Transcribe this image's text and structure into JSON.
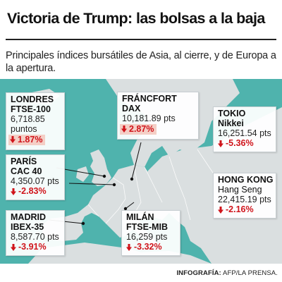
{
  "title": "Victoria de Trump: las bolsas a la baja",
  "subtitle": "Principales índices bursátiles de Asia, al cierre, y de Europa a la apertura.",
  "colors": {
    "sea": "#4fb3ad",
    "land": "#dadfe0",
    "negative": "#d0141b",
    "highlight": "#f4cfc6"
  },
  "markets": {
    "londres": {
      "city": "LONDRES",
      "index": "FTSE-100",
      "value_line1": "6,718.85",
      "value_line2": "puntos",
      "change": "1.87%",
      "direction": "down"
    },
    "frankfurt": {
      "city": "FRÁNCFORT",
      "index": "DAX",
      "value": "10,181.89 pts",
      "change": "2.87%",
      "direction": "down"
    },
    "tokio": {
      "city": "TOKIO",
      "index": "Nikkei",
      "value": "16,251.54 pts",
      "change": "-5.36%",
      "direction": "down"
    },
    "paris": {
      "city": "PARÍS",
      "index": "CAC 40",
      "value": "4,350.07 pts",
      "change": "-2.83%",
      "direction": "down"
    },
    "hongkong": {
      "city": "HONG KONG",
      "index": "Hang Seng",
      "value": "22,415.19 pts",
      "change": "-2.16%",
      "direction": "down"
    },
    "madrid": {
      "city": "MADRID",
      "index": "IBEX-35",
      "value": "8,587.70 pts",
      "change": "-3.91%",
      "direction": "down"
    },
    "milan": {
      "city": "MILÁN",
      "index": "FTSE-MIB",
      "value": "16,259 pts",
      "change": "-3.32%",
      "direction": "down"
    }
  },
  "footer": {
    "label": "INFOGRAFÍA:",
    "source": "AFP/LA PRENSA."
  }
}
